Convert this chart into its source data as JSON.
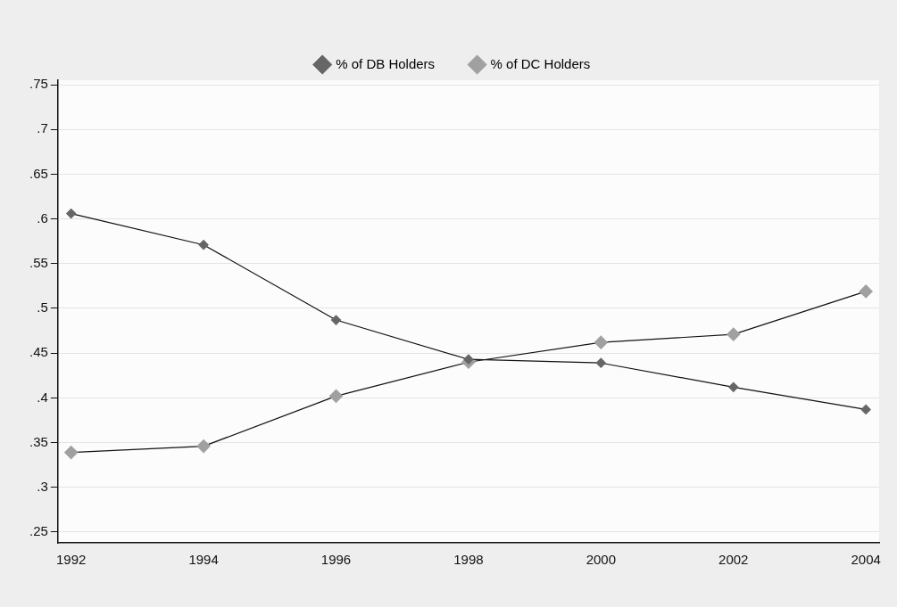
{
  "chart_data": {
    "type": "line",
    "x": [
      1992,
      1994,
      1996,
      1998,
      2000,
      2002,
      2004
    ],
    "series": [
      {
        "name": "% of DB Holders",
        "color": "#666666",
        "values": [
          0.606,
          0.571,
          0.487,
          0.443,
          0.439,
          0.412,
          0.387
        ]
      },
      {
        "name": "% of DC Holders",
        "color": "#a0a0a0",
        "values": [
          0.339,
          0.346,
          0.402,
          0.44,
          0.462,
          0.471,
          0.519
        ]
      }
    ],
    "xlim": [
      1991.8,
      2004.2
    ],
    "xticks": [
      1992,
      1994,
      1996,
      1998,
      2000,
      2002,
      2004
    ],
    "ylim": [
      0.238,
      0.755
    ],
    "yticks": [
      {
        "value": 0.25,
        "label": ".25"
      },
      {
        "value": 0.3,
        "label": ".3"
      },
      {
        "value": 0.35,
        "label": ".35"
      },
      {
        "value": 0.4,
        "label": ".4"
      },
      {
        "value": 0.45,
        "label": ".45"
      },
      {
        "value": 0.5,
        "label": ".5"
      },
      {
        "value": 0.55,
        "label": ".55"
      },
      {
        "value": 0.6,
        "label": ".6"
      },
      {
        "value": 0.65,
        "label": ".65"
      },
      {
        "value": 0.7,
        "label": ".7"
      },
      {
        "value": 0.75,
        "label": ".75"
      }
    ],
    "grid": "y",
    "legend": "top",
    "marker": "diamond",
    "line_style": "solid"
  }
}
